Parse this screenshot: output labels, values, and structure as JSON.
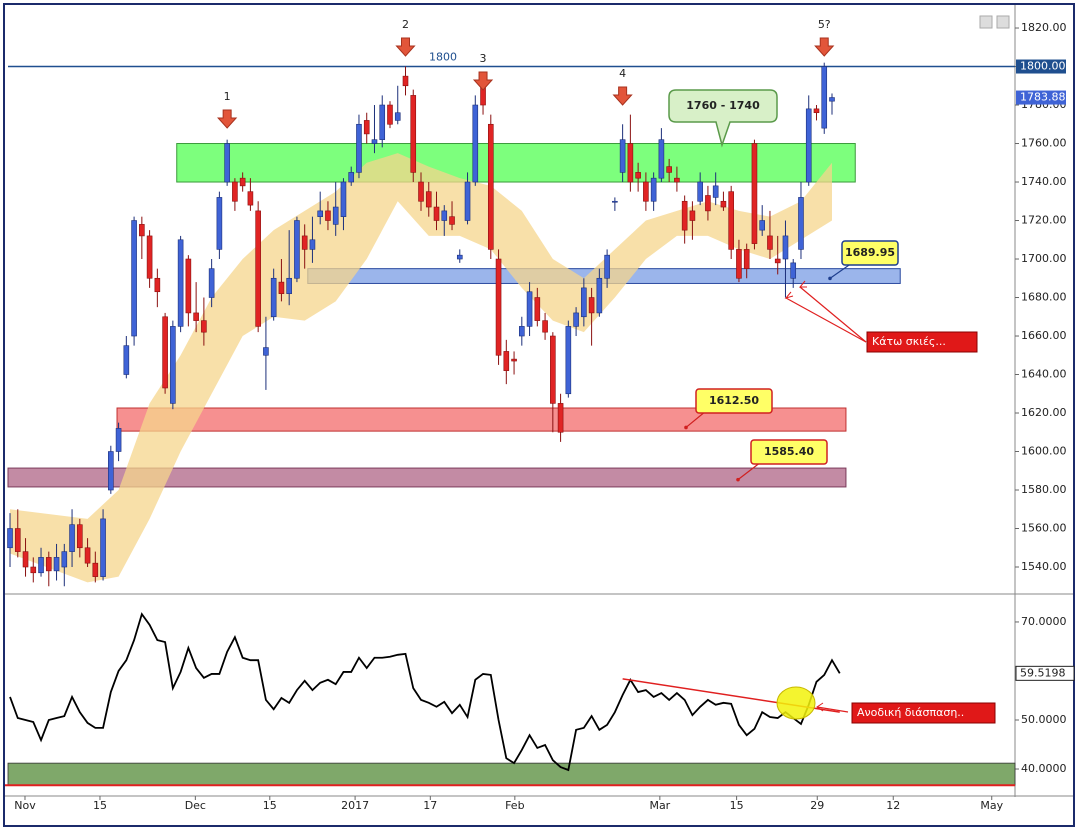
{
  "chart_data": [
    {
      "type": "candlestick",
      "colors": {
        "up": "#3f63d6",
        "down": "#e02424",
        "up_edge": "#1c2f7a",
        "down_edge": "#8a1010"
      },
      "xlim": [
        -0.26,
        129.6
      ],
      "ylim": [
        1526.5,
        1830.4
      ],
      "yticks": [
        {
          "value": 1540,
          "label": "1540.00"
        },
        {
          "value": 1560,
          "label": "1560.00"
        },
        {
          "value": 1580,
          "label": "1580.00"
        },
        {
          "value": 1600,
          "label": "1600.00"
        },
        {
          "value": 1620,
          "label": "1620.00"
        },
        {
          "value": 1640,
          "label": "1640.00"
        },
        {
          "value": 1660,
          "label": "1660.00"
        },
        {
          "value": 1680,
          "label": "1680.00"
        },
        {
          "value": 1700,
          "label": "1700.00"
        },
        {
          "value": 1720,
          "label": "1720.00"
        },
        {
          "value": 1740,
          "label": "1740.00"
        },
        {
          "value": 1760,
          "label": "1760.00"
        },
        {
          "value": 1780,
          "label": "1780.00"
        },
        {
          "value": 1800,
          "label": "1800.00"
        },
        {
          "value": 1820,
          "label": "1820.00"
        }
      ],
      "ohlc": [
        [
          1550,
          1568,
          1540,
          1560
        ],
        [
          1560,
          1570,
          1545,
          1548
        ],
        [
          1548,
          1555,
          1535,
          1540
        ],
        [
          1540,
          1545,
          1532,
          1537
        ],
        [
          1537,
          1550,
          1535,
          1545
        ],
        [
          1545,
          1548,
          1530,
          1538
        ],
        [
          1538,
          1552,
          1533,
          1545
        ],
        [
          1540,
          1552,
          1530,
          1548
        ],
        [
          1548,
          1570,
          1540,
          1562
        ],
        [
          1562,
          1565,
          1545,
          1550
        ],
        [
          1550,
          1555,
          1540,
          1542
        ],
        [
          1542,
          1548,
          1532,
          1535
        ],
        [
          1535,
          1570,
          1533,
          1565
        ],
        [
          1580,
          1603,
          1578,
          1600
        ],
        [
          1600,
          1615,
          1595,
          1612
        ],
        [
          1640,
          1660,
          1638,
          1655
        ],
        [
          1660,
          1722,
          1655,
          1720
        ],
        [
          1718,
          1722,
          1700,
          1712
        ],
        [
          1712,
          1715,
          1685,
          1690
        ],
        [
          1690,
          1695,
          1675,
          1683
        ],
        [
          1670,
          1672,
          1630,
          1633
        ],
        [
          1625,
          1668,
          1622,
          1665
        ],
        [
          1665,
          1712,
          1662,
          1710
        ],
        [
          1700,
          1702,
          1665,
          1672
        ],
        [
          1672,
          1688,
          1662,
          1668
        ],
        [
          1668,
          1680,
          1655,
          1662
        ],
        [
          1680,
          1700,
          1675,
          1695
        ],
        [
          1705,
          1735,
          1700,
          1732
        ],
        [
          1740,
          1762,
          1738,
          1760
        ],
        [
          1740,
          1742,
          1725,
          1730
        ],
        [
          1742,
          1745,
          1735,
          1738
        ],
        [
          1735,
          1742,
          1725,
          1728
        ],
        [
          1725,
          1730,
          1662,
          1665
        ],
        [
          1650,
          1670,
          1632,
          1654
        ],
        [
          1670,
          1695,
          1668,
          1690
        ],
        [
          1688,
          1700,
          1678,
          1682
        ],
        [
          1682,
          1715,
          1676,
          1690
        ],
        [
          1690,
          1722,
          1688,
          1720
        ],
        [
          1712,
          1718,
          1695,
          1705
        ],
        [
          1705,
          1722,
          1698,
          1710
        ],
        [
          1722,
          1735,
          1718,
          1725
        ],
        [
          1725,
          1730,
          1715,
          1720
        ],
        [
          1718,
          1740,
          1712,
          1727
        ],
        [
          1722,
          1742,
          1715,
          1740
        ],
        [
          1740,
          1748,
          1738,
          1745
        ],
        [
          1745,
          1775,
          1742,
          1770
        ],
        [
          1772,
          1776,
          1760,
          1765
        ],
        [
          1760,
          1780,
          1755,
          1762
        ],
        [
          1762,
          1785,
          1758,
          1780
        ],
        [
          1780,
          1782,
          1768,
          1770
        ],
        [
          1772,
          1790,
          1770,
          1776
        ],
        [
          1795,
          1800,
          1785,
          1790
        ],
        [
          1785,
          1788,
          1740,
          1745
        ],
        [
          1740,
          1745,
          1725,
          1730
        ],
        [
          1735,
          1740,
          1722,
          1727
        ],
        [
          1727,
          1735,
          1715,
          1720
        ],
        [
          1720,
          1728,
          1712,
          1725
        ],
        [
          1722,
          1730,
          1715,
          1718
        ],
        [
          1700,
          1705,
          1698,
          1702
        ],
        [
          1720,
          1745,
          1718,
          1740
        ],
        [
          1740,
          1785,
          1738,
          1780
        ],
        [
          1790,
          1795,
          1775,
          1780
        ],
        [
          1770,
          1775,
          1700,
          1705
        ],
        [
          1700,
          1705,
          1645,
          1650
        ],
        [
          1652,
          1658,
          1635,
          1642
        ],
        [
          1648,
          1652,
          1640,
          1647
        ],
        [
          1660,
          1670,
          1655,
          1665
        ],
        [
          1665,
          1688,
          1660,
          1683
        ],
        [
          1680,
          1685,
          1665,
          1668
        ],
        [
          1668,
          1672,
          1658,
          1662
        ],
        [
          1660,
          1662,
          1610,
          1625
        ],
        [
          1625,
          1630,
          1605,
          1610
        ],
        [
          1630,
          1668,
          1628,
          1665
        ],
        [
          1665,
          1675,
          1660,
          1672
        ],
        [
          1670,
          1690,
          1665,
          1685
        ],
        [
          1680,
          1685,
          1655,
          1672
        ],
        [
          1672,
          1695,
          1670,
          1690
        ],
        [
          1690,
          1705,
          1685,
          1702
        ],
        [
          1730,
          1732,
          1725,
          1730
        ],
        [
          1745,
          1770,
          1740,
          1762
        ],
        [
          1760,
          1775,
          1735,
          1740
        ],
        [
          1745,
          1750,
          1735,
          1742
        ],
        [
          1740,
          1745,
          1725,
          1730
        ],
        [
          1730,
          1745,
          1725,
          1742
        ],
        [
          1742,
          1768,
          1740,
          1762
        ],
        [
          1748,
          1752,
          1740,
          1745
        ],
        [
          1742,
          1748,
          1735,
          1740
        ],
        [
          1730,
          1733,
          1708,
          1715
        ],
        [
          1725,
          1730,
          1710,
          1720
        ],
        [
          1730,
          1745,
          1728,
          1740
        ],
        [
          1733,
          1738,
          1720,
          1725
        ],
        [
          1732,
          1745,
          1728,
          1738
        ],
        [
          1730,
          1735,
          1725,
          1727
        ],
        [
          1735,
          1738,
          1700,
          1705
        ],
        [
          1705,
          1710,
          1688,
          1690
        ],
        [
          1705,
          1708,
          1690,
          1695
        ],
        [
          1760,
          1762,
          1705,
          1708
        ],
        [
          1715,
          1728,
          1712,
          1720
        ],
        [
          1712,
          1725,
          1700,
          1705
        ],
        [
          1700,
          1712,
          1692,
          1698
        ],
        [
          1700,
          1720,
          1680,
          1712
        ],
        [
          1690,
          1700,
          1685,
          1698
        ],
        [
          1705,
          1740,
          1700,
          1732
        ],
        [
          1740,
          1785,
          1738,
          1778
        ],
        [
          1778,
          1780,
          1772,
          1776
        ],
        [
          1768,
          1802,
          1765,
          1800
        ],
        [
          1782,
          1786,
          1775,
          1783.88
        ]
      ],
      "band": {
        "color": "#f5d58c",
        "x": [
          0,
          10,
          14,
          18,
          22,
          26,
          30,
          34,
          38,
          42,
          46,
          50,
          54,
          58,
          62,
          66,
          70,
          74,
          78,
          82,
          86,
          90,
          94,
          98,
          102,
          106
        ],
        "upper": [
          1570,
          1565,
          1580,
          1625,
          1650,
          1680,
          1700,
          1715,
          1725,
          1735,
          1750,
          1755,
          1748,
          1742,
          1738,
          1725,
          1700,
          1690,
          1705,
          1720,
          1725,
          1730,
          1725,
          1722,
          1730,
          1750
        ],
        "lower": [
          1547,
          1532,
          1535,
          1565,
          1600,
          1630,
          1660,
          1670,
          1668,
          1678,
          1700,
          1730,
          1712,
          1712,
          1705,
          1685,
          1668,
          1662,
          1680,
          1700,
          1712,
          1712,
          1705,
          1700,
          1710,
          1720
        ]
      },
      "zones": [
        {
          "color": "#66ff66",
          "edge": "#3a9a3a",
          "x": [
            21.5,
            109
          ],
          "y": [
            1740,
            1760
          ]
        },
        {
          "color": "#8aa8e8",
          "edge": "#2a4aa0",
          "x": [
            38.4,
            114.8
          ],
          "y": [
            1687.3,
            1695
          ]
        },
        {
          "color": "#f47c7c",
          "edge": "#c03030",
          "x": [
            13.8,
            107.8
          ],
          "y": [
            1610.6,
            1622.6
          ]
        },
        {
          "color": "#b97794",
          "edge": "#7a3a5a",
          "x": [
            -0.26,
            107.8
          ],
          "y": [
            1581.6,
            1591.4
          ]
        }
      ],
      "level": {
        "value": 1800,
        "label": "1800.00",
        "color": "#1f4f8f"
      },
      "waves": [
        {
          "label": "1",
          "candle": 28
        },
        {
          "label": "2",
          "candle": 51
        },
        {
          "label": "3",
          "candle": 61
        },
        {
          "label": "4",
          "candle": 79
        },
        {
          "label": "5?",
          "candle": 105
        }
      ],
      "callouts": [
        {
          "text": "1760 - 1740"
        },
        {
          "value": 1689.95
        },
        {
          "value": 1612.5,
          "label": "1612.50"
        },
        {
          "value": 1585.4,
          "label": "1585.40"
        },
        {
          "text": "Κάτω σκιές..."
        }
      ]
    },
    {
      "type": "line",
      "color": "#000000",
      "xlim": [
        -0.26,
        129.6
      ],
      "xticks": [
        {
          "value": 1.93,
          "label": "Nov"
        },
        {
          "value": 11.6,
          "label": "15"
        },
        {
          "value": 23.9,
          "label": "Dec"
        },
        {
          "value": 33.5,
          "label": "15"
        },
        {
          "value": 44.5,
          "label": "2017"
        },
        {
          "value": 54.2,
          "label": "17"
        },
        {
          "value": 65.1,
          "label": "Feb"
        },
        {
          "value": 83.8,
          "label": "Mar"
        },
        {
          "value": 93.7,
          "label": "15"
        },
        {
          "value": 104.1,
          "label": "29"
        },
        {
          "value": 113.9,
          "label": "12"
        },
        {
          "value": 126.6,
          "label": "May"
        }
      ],
      "ylim": [
        34.7,
        75.5
      ],
      "yticks": [
        {
          "value": 40,
          "label": "40.0000"
        },
        {
          "value": 50,
          "label": "50.0000"
        },
        {
          "value": 70,
          "label": "70.0000"
        }
      ],
      "values": [
        54.7,
        50.4,
        50.0,
        49.6,
        45.9,
        50.0,
        50.4,
        50.8,
        54.7,
        51.6,
        49.4,
        48.4,
        48.4,
        55.7,
        60.0,
        62.2,
        66.3,
        71.6,
        69.4,
        66.3,
        65.9,
        56.5,
        59.8,
        64.7,
        60.6,
        58.6,
        59.4,
        59.4,
        63.9,
        66.9,
        62.7,
        62.2,
        62.2,
        54.1,
        52.2,
        54.5,
        53.5,
        56.1,
        58.0,
        56.1,
        57.6,
        58.2,
        57.3,
        59.8,
        59.8,
        62.7,
        60.6,
        62.7,
        62.7,
        62.9,
        63.3,
        63.5,
        56.5,
        54.1,
        53.5,
        52.7,
        53.7,
        51.4,
        53.1,
        50.6,
        58.2,
        59.4,
        59.2,
        50.0,
        42.2,
        41.2,
        43.9,
        46.9,
        44.3,
        44.9,
        41.8,
        40.4,
        39.8,
        48.0,
        48.4,
        50.8,
        48.0,
        49.0,
        51.6,
        55.1,
        58.2,
        55.7,
        56.1,
        54.7,
        55.5,
        54.1,
        55.5,
        54.1,
        51.0,
        52.7,
        54.1,
        53.1,
        53.5,
        53.3,
        49.0,
        46.9,
        48.2,
        51.6,
        50.6,
        50.4,
        51.6,
        50.4,
        49.2,
        53.1,
        57.8,
        59.2,
        62.2,
        59.5198
      ],
      "zone": {
        "color": "#7fa86a",
        "edge": "#e02020",
        "y": [
          36.7,
          41.2
        ]
      },
      "trendline": {
        "color": "#e02020",
        "x": [
          79,
          107
        ],
        "y": [
          58.4,
          51.6
        ]
      },
      "annotation": "Ανοδική διάσπαση.."
    }
  ]
}
